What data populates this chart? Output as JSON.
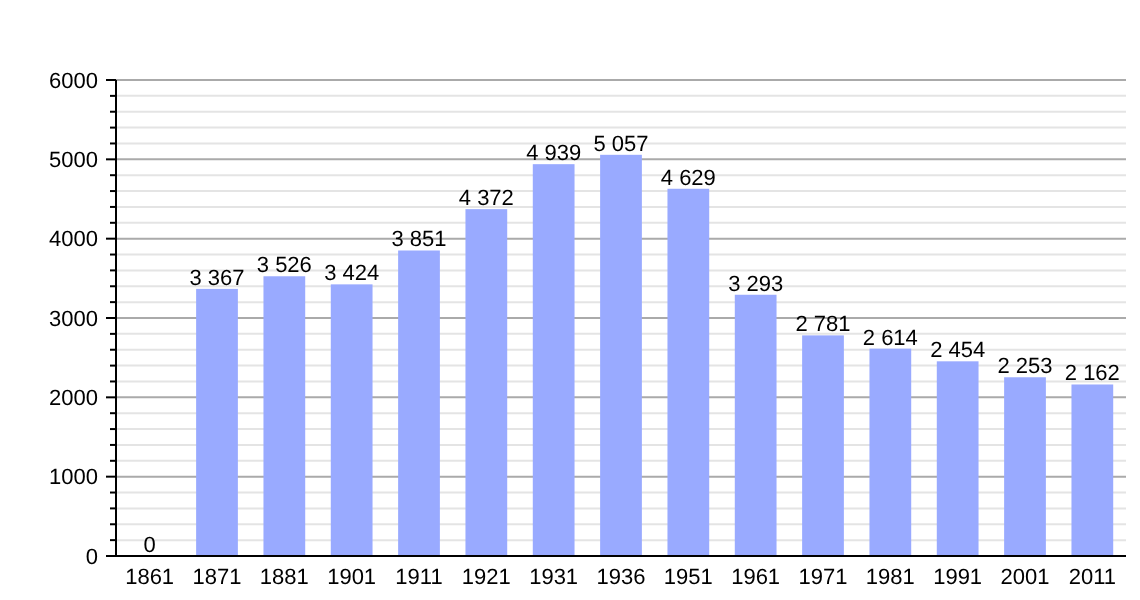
{
  "chart_data": {
    "type": "bar",
    "categories": [
      "1861",
      "1871",
      "1881",
      "1901",
      "1911",
      "1921",
      "1931",
      "1936",
      "1951",
      "1961",
      "1971",
      "1981",
      "1991",
      "2001",
      "2011"
    ],
    "values": [
      0,
      3367,
      3526,
      3424,
      3851,
      4372,
      4939,
      5057,
      4629,
      3293,
      2781,
      2614,
      2454,
      2253,
      2162
    ],
    "value_labels": [
      "0",
      "3 367",
      "3 526",
      "3 424",
      "3 851",
      "4 372",
      "4 939",
      "5 057",
      "4 629",
      "3 293",
      "2 781",
      "2 614",
      "2 454",
      "2 253",
      "2 162"
    ],
    "color": "#99aaff",
    "ylim": [
      0,
      6000
    ],
    "yticks": [
      0,
      {
        "value": 200,
        "label": null
      },
      {
        "value": 400,
        "label": null
      },
      {
        "value": 600,
        "label": null
      },
      {
        "value": 800,
        "label": null
      },
      1000,
      {
        "value": 1200,
        "label": null
      },
      {
        "value": 1400,
        "label": null
      },
      {
        "value": 1600,
        "label": null
      },
      {
        "value": 1800,
        "label": null
      },
      2000,
      {
        "value": 2200,
        "label": null
      },
      {
        "value": 2400,
        "label": null
      },
      {
        "value": 2600,
        "label": null
      },
      {
        "value": 2800,
        "label": null
      },
      3000,
      {
        "value": 3200,
        "label": null
      },
      {
        "value": 3400,
        "label": null
      },
      {
        "value": 3600,
        "label": null
      },
      {
        "value": 3800,
        "label": null
      },
      4000,
      {
        "value": 4200,
        "label": null
      },
      {
        "value": 4400,
        "label": null
      },
      {
        "value": 4600,
        "label": null
      },
      {
        "value": 4800,
        "label": null
      },
      5000,
      {
        "value": 5200,
        "label": null
      },
      {
        "value": 5400,
        "label": null
      },
      {
        "value": 5600,
        "label": null
      },
      {
        "value": 5800,
        "label": null
      },
      6000
    ],
    "grid": true
  }
}
